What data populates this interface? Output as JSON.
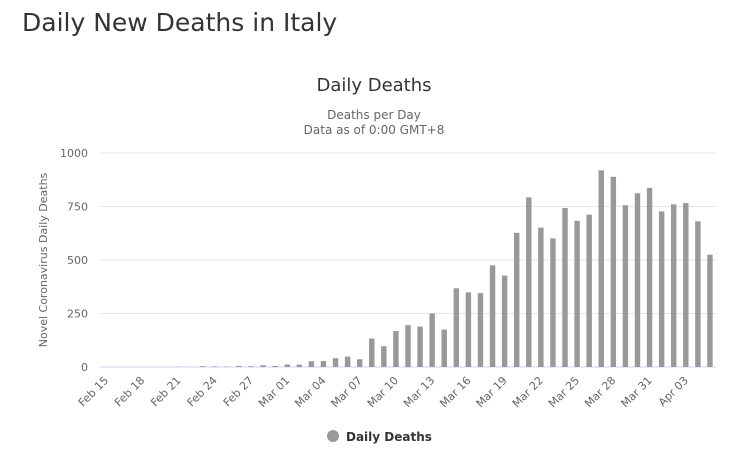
{
  "page": {
    "heading": "Daily New Deaths in Italy"
  },
  "chart_data": {
    "type": "bar",
    "title": "Daily Deaths",
    "subtitle_lines": [
      "Deaths per Day",
      "Data as of 0:00 GMT+8"
    ],
    "xlabel": "",
    "ylabel": "Novel Coronavirus Daily Deaths",
    "ylim": [
      0,
      1000
    ],
    "yticks": [
      0,
      250,
      500,
      750,
      1000
    ],
    "grid": true,
    "legend": "bottom-center",
    "colors": {
      "bar": "#999999",
      "grid": "#e6e6e6",
      "axis_text": "#666666",
      "title": "#333333"
    },
    "categories": [
      "Feb 15",
      "Feb 16",
      "Feb 17",
      "Feb 18",
      "Feb 19",
      "Feb 20",
      "Feb 21",
      "Feb 22",
      "Feb 23",
      "Feb 24",
      "Feb 25",
      "Feb 26",
      "Feb 27",
      "Feb 28",
      "Feb 29",
      "Mar 01",
      "Mar 02",
      "Mar 03",
      "Mar 04",
      "Mar 05",
      "Mar 06",
      "Mar 07",
      "Mar 08",
      "Mar 09",
      "Mar 10",
      "Mar 11",
      "Mar 12",
      "Mar 13",
      "Mar 14",
      "Mar 15",
      "Mar 16",
      "Mar 17",
      "Mar 18",
      "Mar 19",
      "Mar 20",
      "Mar 21",
      "Mar 22",
      "Mar 23",
      "Mar 24",
      "Mar 25",
      "Mar 26",
      "Mar 27",
      "Mar 28",
      "Mar 29",
      "Mar 30",
      "Mar 31",
      "Apr 01",
      "Apr 02",
      "Apr 03",
      "Apr 04",
      "Apr 05"
    ],
    "tick_labels": [
      "Feb 15",
      "Feb 18",
      "Feb 21",
      "Feb 24",
      "Feb 27",
      "Mar 01",
      "Mar 04",
      "Mar 07",
      "Mar 10",
      "Mar 13",
      "Mar 16",
      "Mar 19",
      "Mar 22",
      "Mar 25",
      "Mar 28",
      "Mar 31",
      "Apr 03"
    ],
    "series": [
      {
        "name": "Daily Deaths",
        "values": [
          0,
          0,
          0,
          0,
          0,
          0,
          1,
          1,
          4,
          3,
          2,
          5,
          4,
          8,
          5,
          12,
          11,
          27,
          28,
          41,
          49,
          36,
          133,
          97,
          168,
          196,
          189,
          250,
          175,
          368,
          349,
          345,
          475,
          427,
          627,
          793,
          651,
          601,
          743,
          683,
          712,
          919,
          889,
          756,
          812,
          837,
          727,
          760,
          766,
          681,
          525
        ]
      }
    ]
  }
}
